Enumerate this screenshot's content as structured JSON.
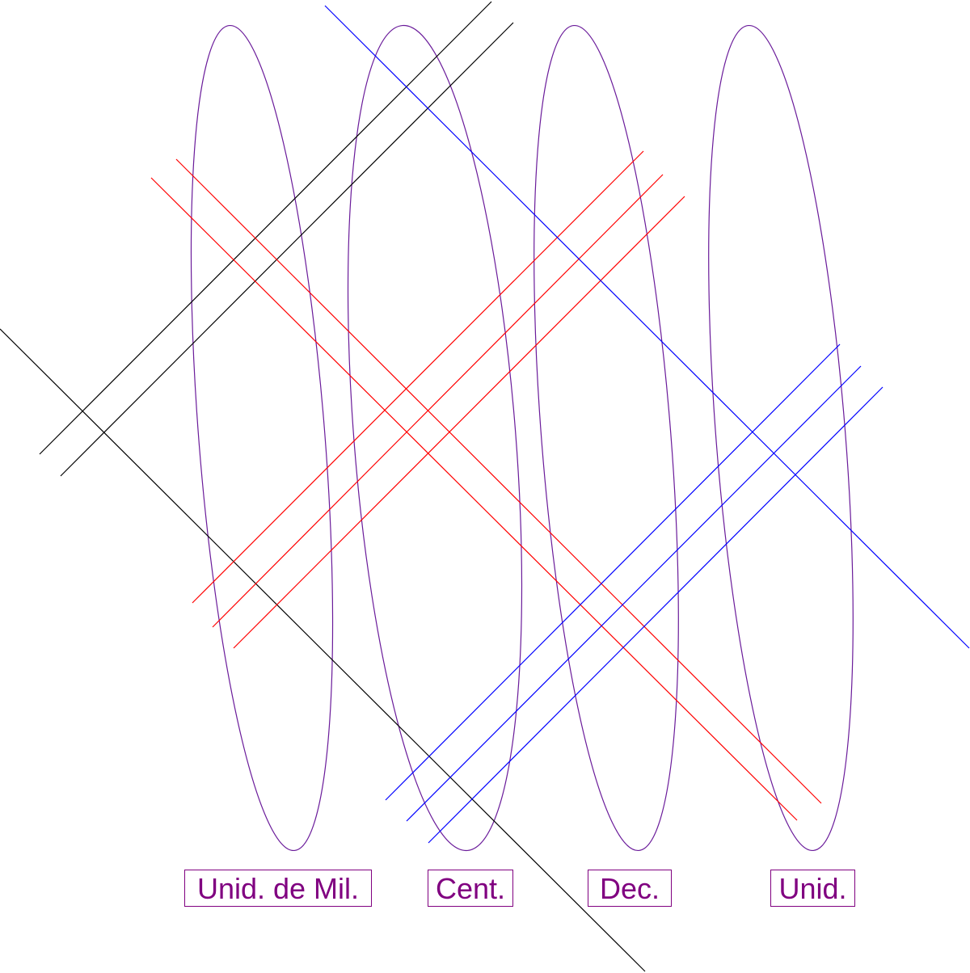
{
  "labels": {
    "thousands": "Unid. de Mil.",
    "hundreds": "Cent.",
    "tens": "Dec.",
    "units": "Unid."
  },
  "colors": {
    "ellipse": "#6a1b9a",
    "label": "#800080",
    "black_lines": "#000000",
    "red_lines": "#ff0000",
    "blue_lines": "#0000ff"
  }
}
